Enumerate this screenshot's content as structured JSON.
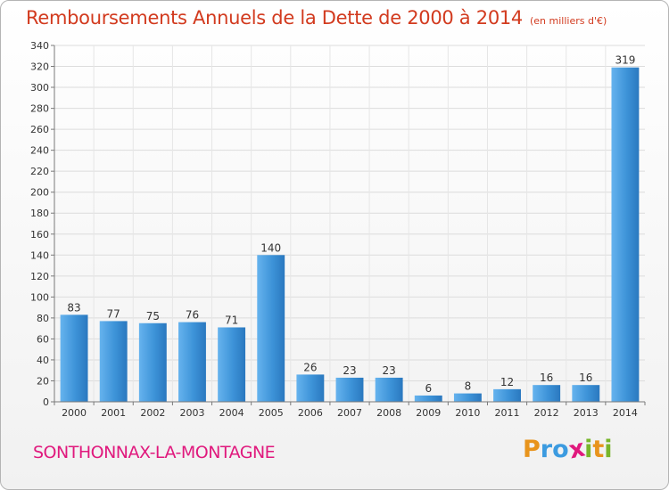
{
  "chart_data": {
    "type": "bar",
    "title": "Remboursements Annuels de la Dette de 2000 à 2014",
    "subtitle": "(en milliers d'€)",
    "categories": [
      "2000",
      "2001",
      "2002",
      "2003",
      "2004",
      "2005",
      "2006",
      "2007",
      "2008",
      "2009",
      "2010",
      "2011",
      "2012",
      "2013",
      "2014"
    ],
    "values": [
      83,
      77,
      75,
      76,
      71,
      140,
      26,
      23,
      23,
      6,
      8,
      12,
      16,
      16,
      319
    ],
    "ylim": [
      0,
      340
    ],
    "yticks": [
      0,
      20,
      40,
      60,
      80,
      100,
      120,
      140,
      160,
      180,
      200,
      220,
      240,
      260,
      280,
      300,
      320,
      340
    ],
    "xlabel": "",
    "ylabel": "",
    "grid": true,
    "legend": "none",
    "bar_color": "#3b8fd4"
  },
  "footer": {
    "location": "SONTHONNAX-LA-MONTAGNE",
    "logo_text": "Proxiti"
  },
  "colors": {
    "title": "#d23a1e",
    "location": "#e0197d",
    "logo_letters": [
      "#e8941c",
      "#3c9be0",
      "#3c9be0",
      "#e0197d",
      "#78b62b",
      "#e8941c",
      "#78b62b"
    ]
  }
}
